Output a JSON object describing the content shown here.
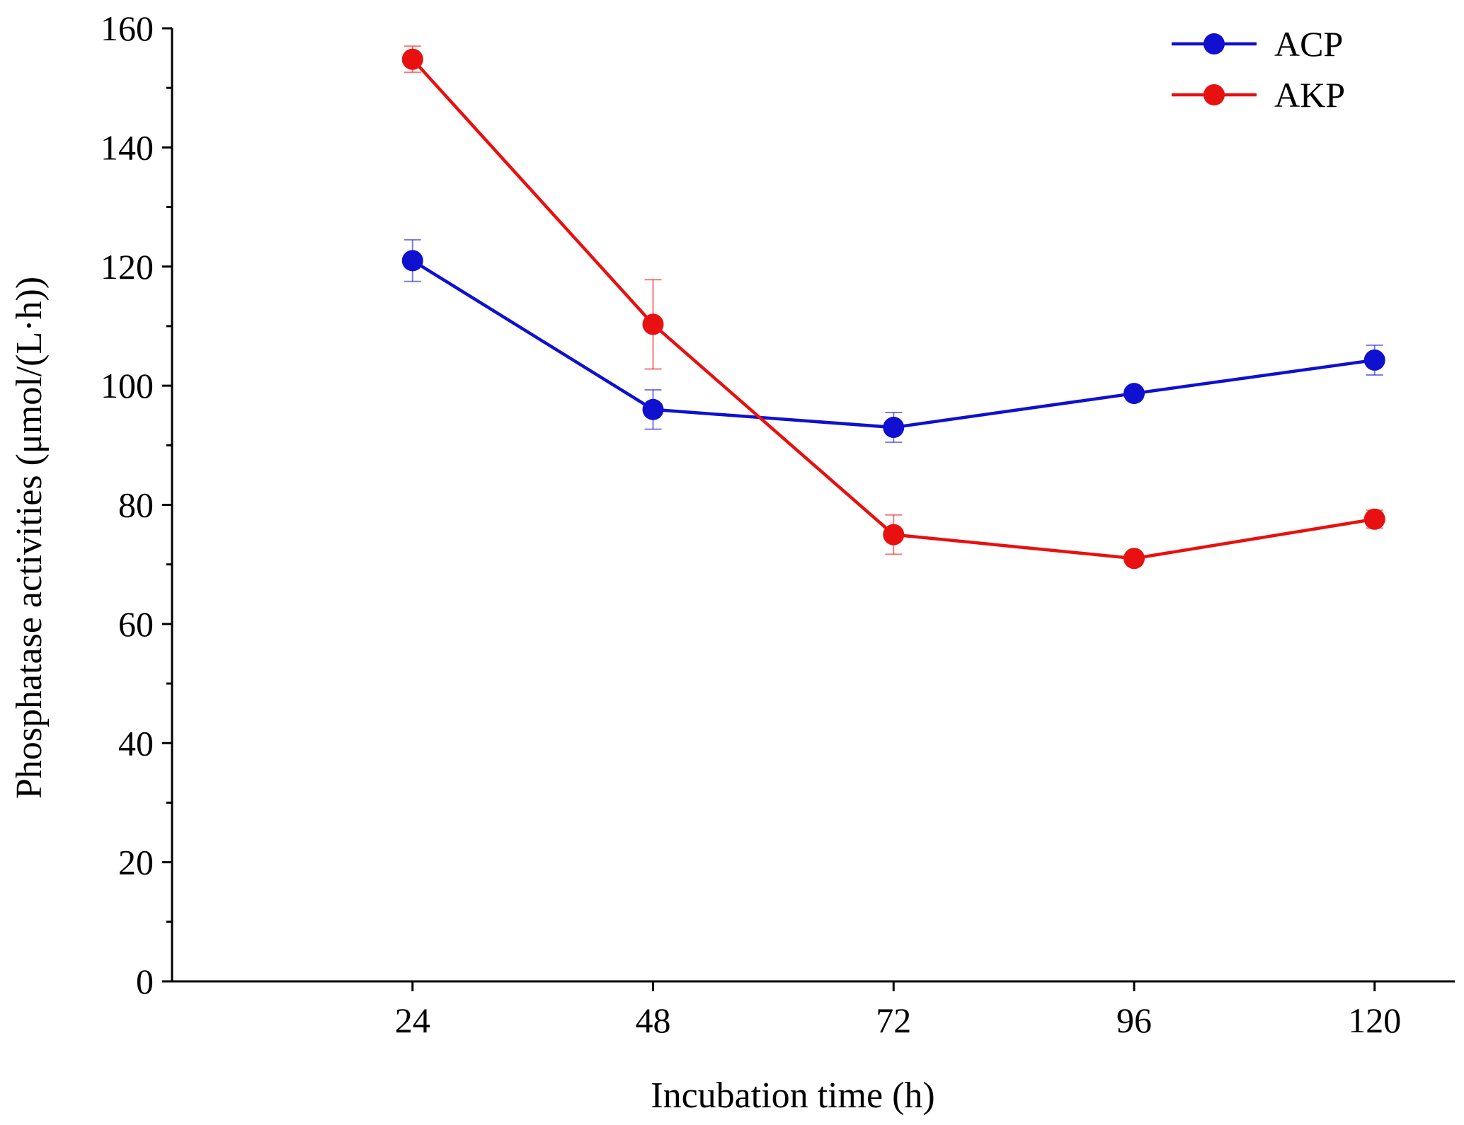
{
  "chart_data": {
    "type": "line",
    "title": "",
    "xlabel": "Incubation time (h)",
    "ylabel": "Phosphatase activities (μmol/(L·h))",
    "x": [
      24,
      48,
      72,
      96,
      120
    ],
    "xlim": [
      0,
      128
    ],
    "ylim": [
      0,
      160
    ],
    "xticks": [
      24,
      48,
      72,
      96,
      120
    ],
    "yticks": [
      0,
      20,
      40,
      60,
      80,
      100,
      120,
      140,
      160
    ],
    "legend_position": "top-right",
    "grid": false,
    "series": [
      {
        "name": "ACP",
        "color": "#1010d0",
        "values": [
          121,
          96,
          93,
          98.7,
          104.3
        ],
        "errors": [
          3.5,
          3.3,
          2.5,
          0.8,
          2.5
        ]
      },
      {
        "name": "AKP",
        "color": "#e81010",
        "values": [
          154.8,
          110.3,
          75,
          71,
          77.6
        ],
        "errors": [
          2.2,
          7.5,
          3.3,
          0.8,
          1.5
        ]
      }
    ]
  }
}
